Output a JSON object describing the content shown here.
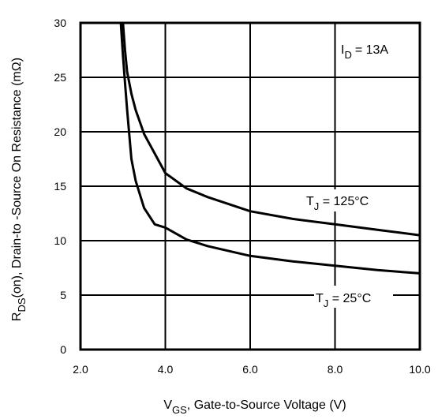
{
  "chart_data": {
    "type": "line",
    "title": "",
    "annotation": {
      "symbol": "I",
      "subscript": "D",
      "value": "= 13A"
    },
    "xlabel": {
      "symbol": "V",
      "subscript": "GS",
      "text": ", Gate-to-Source Voltage (V)"
    },
    "ylabel": {
      "symbol": "R",
      "subscript": "DS",
      "text": "(on),  Drain-to -Source On Resistance (mΩ)"
    },
    "xlim": [
      2.0,
      10.0
    ],
    "ylim": [
      0,
      30
    ],
    "x_ticks": [
      "2.0",
      "4.0",
      "6.0",
      "8.0",
      "10.0"
    ],
    "x_tick_values": [
      2,
      4,
      6,
      8,
      10
    ],
    "y_ticks": [
      "0",
      "5",
      "10",
      "15",
      "20",
      "25",
      "30"
    ],
    "y_tick_values": [
      0,
      5,
      10,
      15,
      20,
      25,
      30
    ],
    "grid": true,
    "series": [
      {
        "name": "T_J = 125°C",
        "label": {
          "symbol": "T",
          "subscript": "J",
          "value": " = 125°C"
        },
        "x": [
          3.0,
          3.05,
          3.1,
          3.2,
          3.3,
          3.5,
          3.75,
          4.0,
          4.5,
          5.0,
          6.0,
          7.0,
          8.0,
          9.0,
          10.0
        ],
        "y": [
          30.0,
          27.5,
          25.5,
          23.5,
          22.0,
          19.8,
          18.0,
          16.2,
          14.8,
          14.0,
          12.7,
          12.0,
          11.5,
          11.0,
          10.5
        ]
      },
      {
        "name": "T_J = 25°C",
        "label": {
          "symbol": "T",
          "subscript": "J",
          "value": " = 25°C"
        },
        "x": [
          2.95,
          3.0,
          3.05,
          3.1,
          3.2,
          3.3,
          3.5,
          3.75,
          4.0,
          4.5,
          5.0,
          6.0,
          7.0,
          8.0,
          9.0,
          10.0
        ],
        "y": [
          30.0,
          27.0,
          24.5,
          22.0,
          17.5,
          15.5,
          13.0,
          11.5,
          11.2,
          10.1,
          9.5,
          8.6,
          8.1,
          7.7,
          7.3,
          7.0
        ]
      }
    ]
  }
}
